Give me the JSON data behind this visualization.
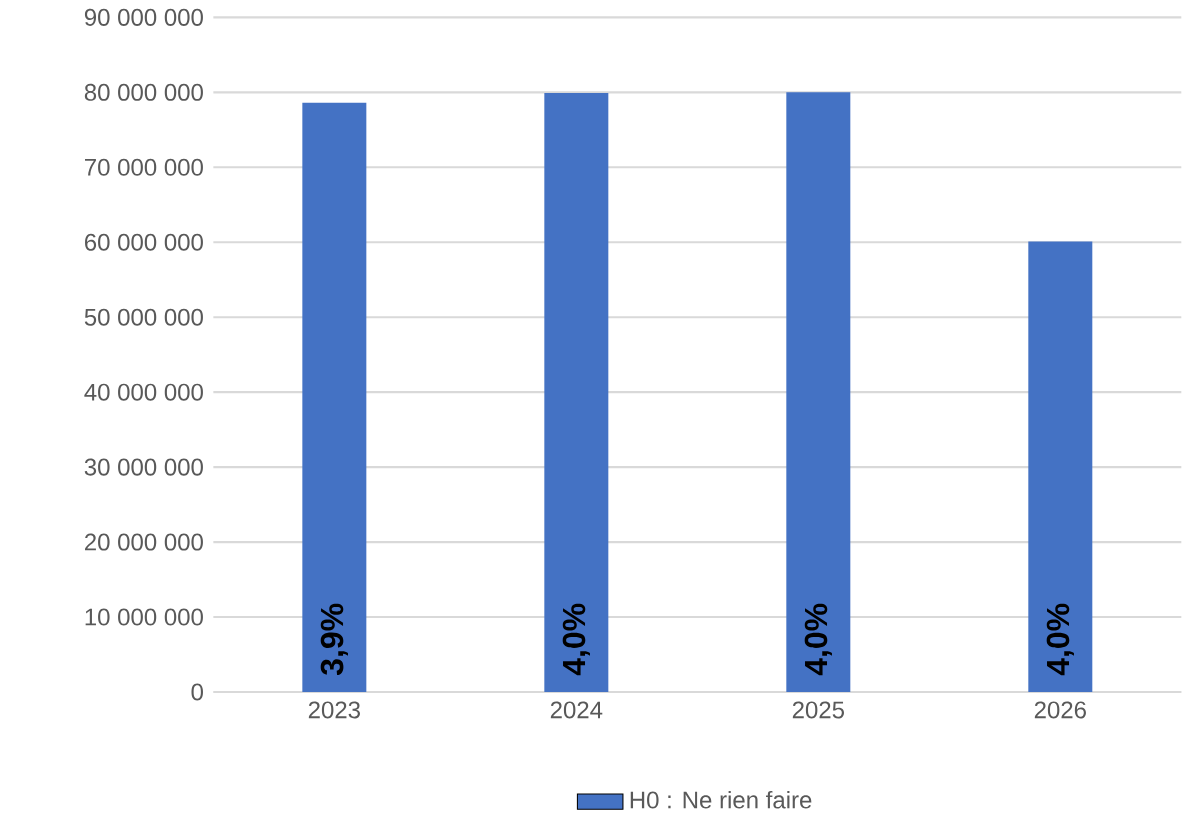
{
  "chart_data": {
    "type": "bar",
    "categories": [
      "2023",
      "2024",
      "2025",
      "2026"
    ],
    "series": [
      {
        "name": "H0 : Ne rien faire",
        "color": "#4472c4",
        "values": [
          78600000,
          79900000,
          80000000,
          60100000
        ]
      }
    ],
    "annotations": [
      "3,9%",
      "4,0%",
      "4,0%",
      "4,0%"
    ],
    "ylim": [
      0,
      90000000
    ],
    "yticks": [
      {
        "value": 0,
        "label": "0"
      },
      {
        "value": 10000000,
        "label": "10 000 000"
      },
      {
        "value": 20000000,
        "label": "20 000 000"
      },
      {
        "value": 30000000,
        "label": "30 000 000"
      },
      {
        "value": 40000000,
        "label": "40 000 000"
      },
      {
        "value": 50000000,
        "label": "50 000 000"
      },
      {
        "value": 60000000,
        "label": "60 000 000"
      },
      {
        "value": 70000000,
        "label": "70 000 000"
      },
      {
        "value": 80000000,
        "label": "80 000 000"
      },
      {
        "value": 90000000,
        "label": "90 000 000"
      }
    ],
    "grid": "y",
    "legend": "bottom"
  }
}
